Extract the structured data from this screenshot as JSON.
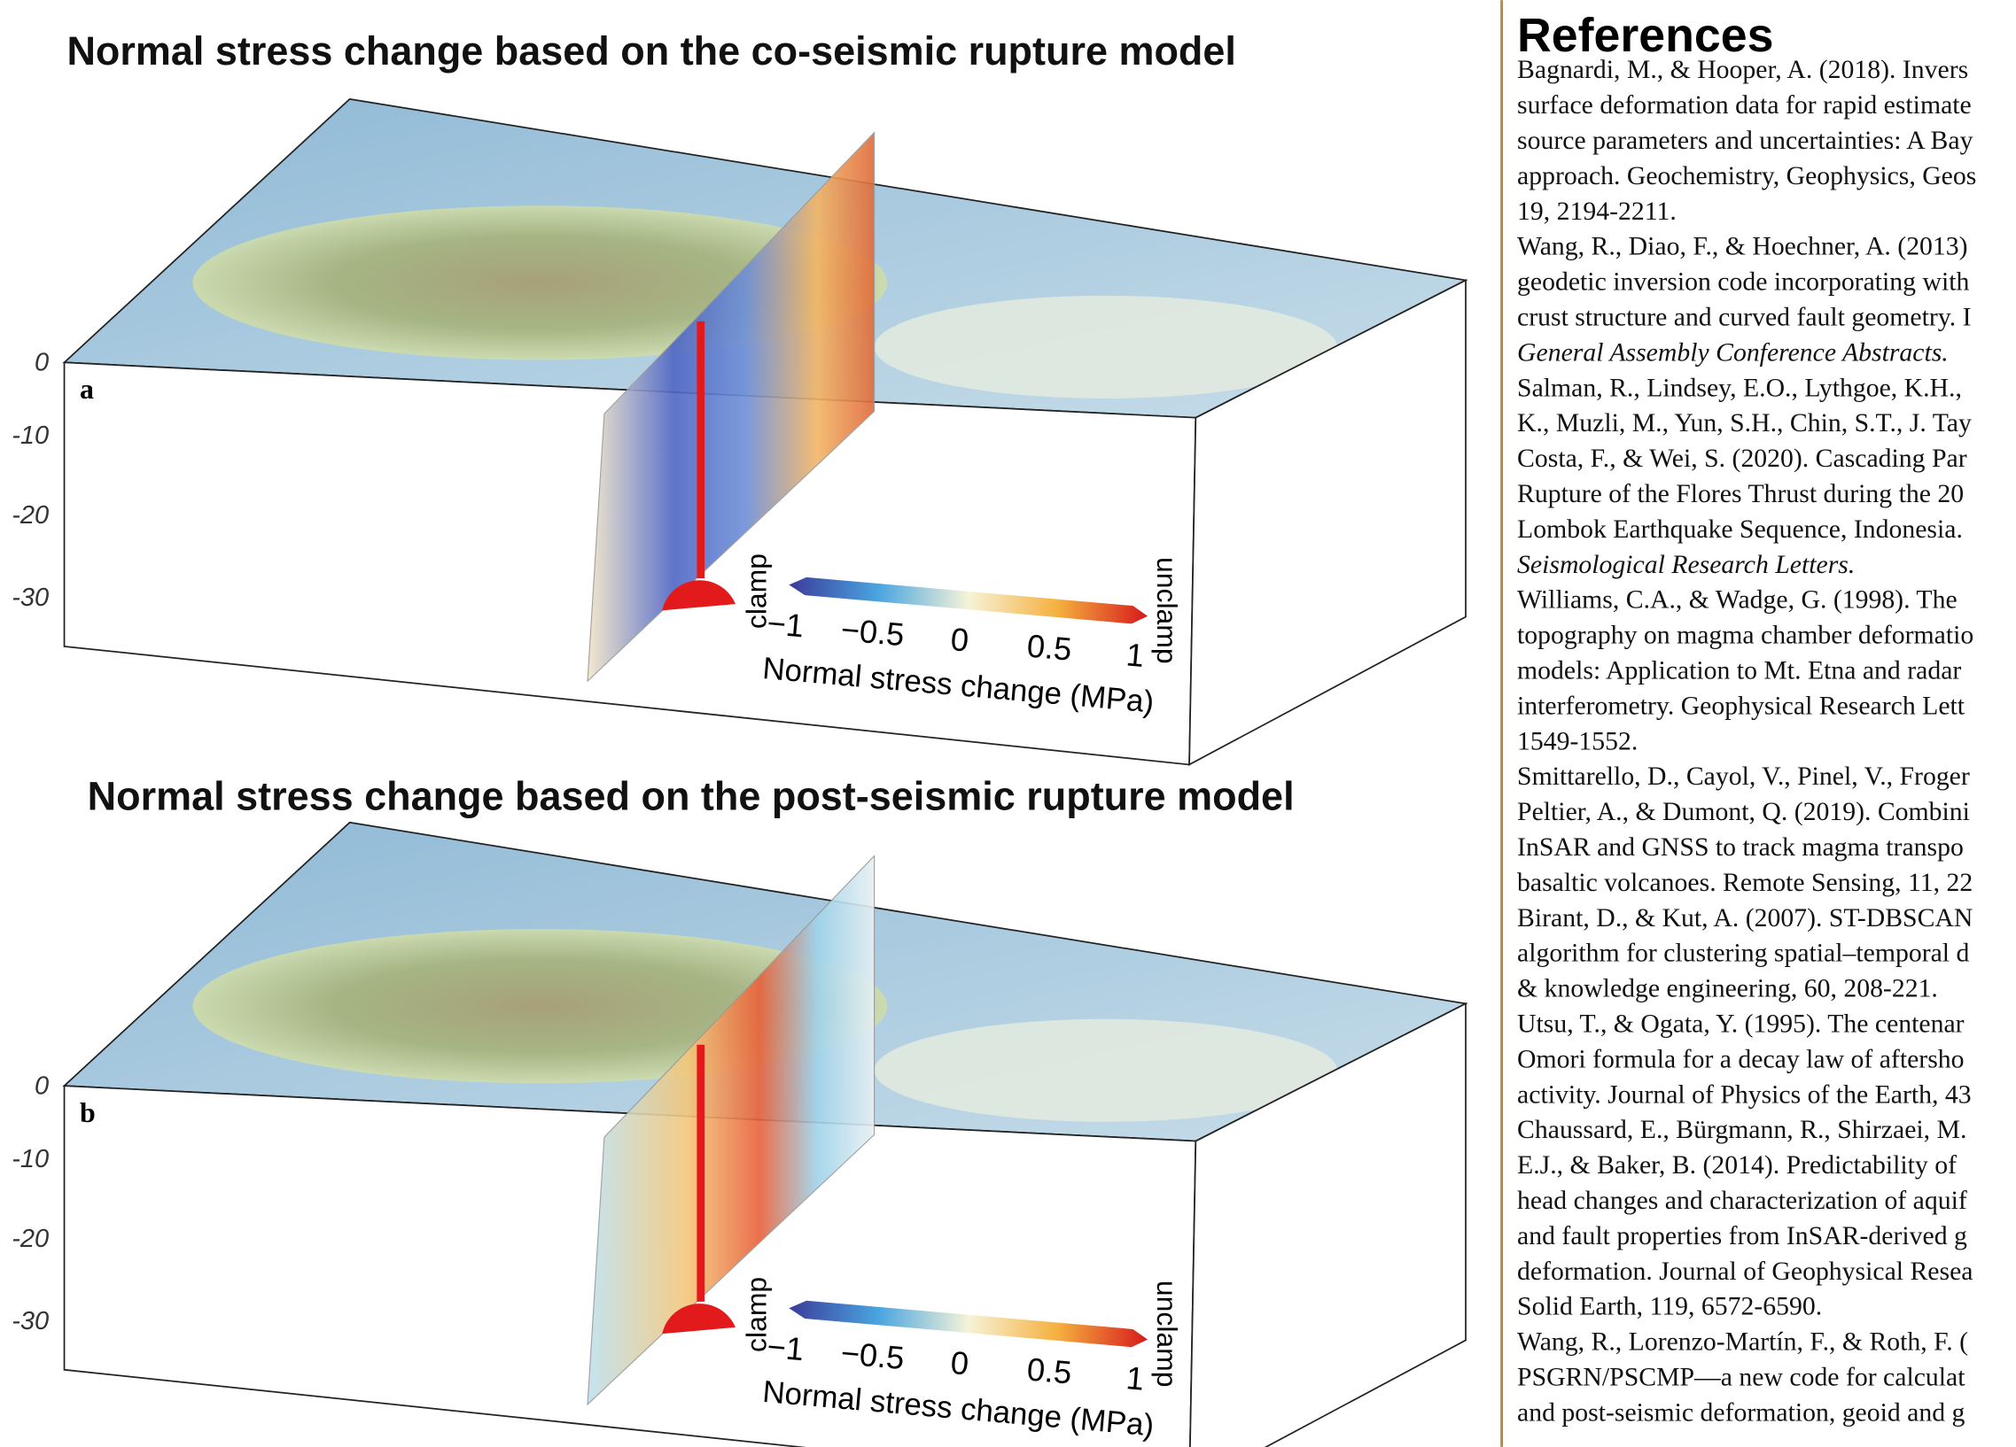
{
  "panels": [
    {
      "title": "Normal stress change based on the co-seismic rupture model",
      "label": "a",
      "depth_ticks": [
        "0",
        "-10",
        "-20",
        "-30"
      ],
      "colorbar": {
        "left_end": "clamp",
        "right_end": "unclamp",
        "ticks": [
          "−1",
          "−0.5",
          "0",
          "0.5",
          "1"
        ],
        "label": "Normal stress change (MPa)"
      }
    },
    {
      "title": "Normal stress change based on the post-seismic rupture model",
      "label": "b",
      "depth_ticks": [
        "0",
        "-10",
        "-20",
        "-30"
      ],
      "colorbar": {
        "left_end": "clamp",
        "right_end": "unclamp",
        "ticks": [
          "−1",
          "−0.5",
          "0",
          "0.5",
          "1"
        ],
        "label": "Normal stress change (MPa)"
      }
    }
  ],
  "references": {
    "title": "References",
    "lines": [
      "Bagnardi, M., & Hooper, A. (2018). Invers",
      "surface deformation data for rapid estimate",
      "source parameters and uncertainties: A Bay",
      "approach. Geochemistry, Geophysics, Geos",
      "19, 2194-2211.",
      "Wang, R., Diao, F., & Hoechner, A. (2013)",
      "geodetic inversion code incorporating with",
      "crust structure and curved fault geometry. I",
      "General Assembly Conference Abstracts.",
      "Salman, R., Lindsey, E.O., Lythgoe, K.H.,",
      "K., Muzli, M., Yun, S.H., Chin, S.T., J. Tay",
      "Costa, F., & Wei, S. (2020). Cascading Par",
      "Rupture of the Flores Thrust during the 20",
      "Lombok Earthquake Sequence, Indonesia.",
      "Seismological Research Letters.",
      "Williams, C.A., & Wadge, G. (1998). The",
      "topography on magma chamber deformatio",
      "models: Application to Mt. Etna and radar",
      "interferometry. Geophysical Research Lett",
      "1549-1552.",
      "Smittarello, D., Cayol, V., Pinel, V., Froger",
      "Peltier, A., & Dumont, Q. (2019). Combini",
      "InSAR and GNSS to track magma transpo",
      "basaltic volcanoes. Remote Sensing, 11, 22",
      "Birant, D., & Kut, A. (2007). ST-DBSCAN",
      "algorithm for clustering spatial–temporal d",
      "& knowledge engineering, 60, 208-221.",
      "Utsu, T., & Ogata, Y. (1995). The centenar",
      "Omori formula for a decay law of aftersho",
      "activity. Journal of Physics of the Earth, 43",
      "Chaussard, E., Bürgmann, R., Shirzaei, M.",
      "E.J., & Baker, B. (2014). Predictability of",
      "head changes and characterization of aquif",
      "and fault properties from InSAR-derived g",
      "deformation. Journal of Geophysical Resea",
      "Solid Earth, 119, 6572-6590.",
      "Wang, R., Lorenzo-Martín, F., & Roth, F. (",
      "PSGRN/PSCMP—a new code for calculat",
      "and post-seismic deformation, geoid and g"
    ]
  }
}
